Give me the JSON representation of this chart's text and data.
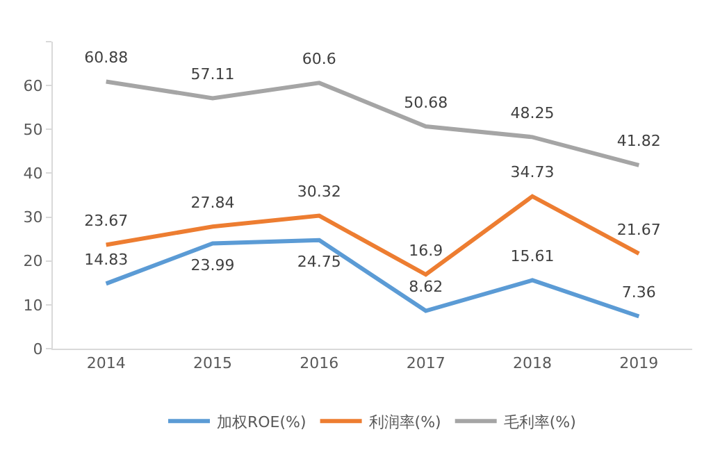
{
  "chart_data": {
    "type": "line",
    "categories": [
      "2014",
      "2015",
      "2016",
      "2017",
      "2018",
      "2019"
    ],
    "series": [
      {
        "name": "加权ROE(%)",
        "color": "#5b9bd5",
        "values": [
          14.83,
          23.99,
          24.75,
          8.62,
          15.61,
          7.36
        ]
      },
      {
        "name": "利润率(%)",
        "color": "#ed7d31",
        "values": [
          23.67,
          27.84,
          30.32,
          16.9,
          34.73,
          21.67
        ]
      },
      {
        "name": "毛利率(%)",
        "color": "#a5a5a5",
        "values": [
          60.88,
          57.11,
          60.6,
          50.68,
          48.25,
          41.82
        ]
      }
    ],
    "ylim": [
      0,
      70
    ],
    "yticks": [
      0,
      10,
      20,
      30,
      40,
      50,
      60,
      {
        "value": 70,
        "label": null
      }
    ],
    "grid": false,
    "legend": "bottom",
    "data_labels": true,
    "marker": "none",
    "line_style": "solid"
  }
}
